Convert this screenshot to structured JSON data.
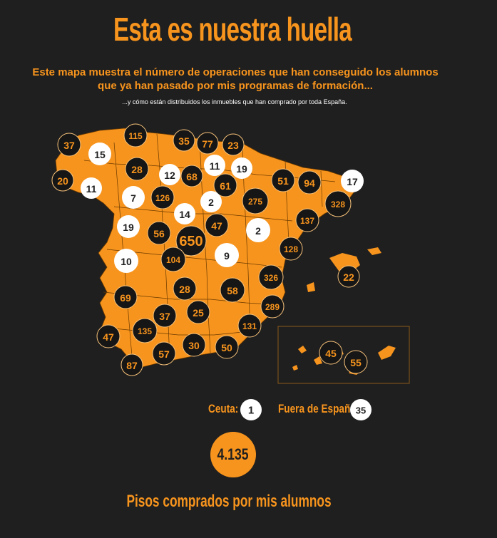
{
  "header": {
    "title": "Esta es nuestra huella",
    "subtitle_line1": "Este mapa muestra el número de operaciones que han conseguido los alumnos",
    "subtitle_line2": "que ya han pasado por mis programas de formación...",
    "note": "...y cómo están distribuidos los inmuebles que han comprado por toda España."
  },
  "colors": {
    "background": "#1f1f1f",
    "accent": "#f7941d",
    "dark": "#161616",
    "white": "#ffffff"
  },
  "markers": [
    {
      "v": "37",
      "s": "dark"
    },
    {
      "v": "115",
      "s": "dark"
    },
    {
      "v": "35",
      "s": "dark"
    },
    {
      "v": "77",
      "s": "dark"
    },
    {
      "v": "23",
      "s": "dark"
    },
    {
      "v": "15",
      "s": "white"
    },
    {
      "v": "28",
      "s": "dark"
    },
    {
      "v": "12",
      "s": "white"
    },
    {
      "v": "68",
      "s": "dark"
    },
    {
      "v": "11",
      "s": "white"
    },
    {
      "v": "19",
      "s": "white"
    },
    {
      "v": "20",
      "s": "dark"
    },
    {
      "v": "11",
      "s": "white"
    },
    {
      "v": "61",
      "s": "dark"
    },
    {
      "v": "51",
      "s": "dark"
    },
    {
      "v": "94",
      "s": "dark"
    },
    {
      "v": "17",
      "s": "white"
    },
    {
      "v": "7",
      "s": "white"
    },
    {
      "v": "126",
      "s": "dark"
    },
    {
      "v": "2",
      "s": "white"
    },
    {
      "v": "275",
      "s": "dark"
    },
    {
      "v": "328",
      "s": "dark"
    },
    {
      "v": "14",
      "s": "white"
    },
    {
      "v": "137",
      "s": "dark"
    },
    {
      "v": "19",
      "s": "white"
    },
    {
      "v": "56",
      "s": "dark"
    },
    {
      "v": "650",
      "s": "dark"
    },
    {
      "v": "47",
      "s": "dark"
    },
    {
      "v": "2",
      "s": "white"
    },
    {
      "v": "128",
      "s": "dark"
    },
    {
      "v": "10",
      "s": "white"
    },
    {
      "v": "104",
      "s": "dark"
    },
    {
      "v": "9",
      "s": "white"
    },
    {
      "v": "22",
      "s": "dark"
    },
    {
      "v": "326",
      "s": "dark"
    },
    {
      "v": "69",
      "s": "dark"
    },
    {
      "v": "28",
      "s": "dark"
    },
    {
      "v": "58",
      "s": "dark"
    },
    {
      "v": "289",
      "s": "dark"
    },
    {
      "v": "37",
      "s": "dark"
    },
    {
      "v": "25",
      "s": "dark"
    },
    {
      "v": "131",
      "s": "dark"
    },
    {
      "v": "47",
      "s": "dark"
    },
    {
      "v": "135",
      "s": "dark"
    },
    {
      "v": "30",
      "s": "dark"
    },
    {
      "v": "50",
      "s": "dark"
    },
    {
      "v": "57",
      "s": "dark"
    },
    {
      "v": "87",
      "s": "dark"
    },
    {
      "v": "45",
      "s": "dark"
    },
    {
      "v": "55",
      "s": "dark"
    }
  ],
  "extras": {
    "ceuta_label": "Ceuta:",
    "ceuta_value": "1",
    "abroad_label": "Fuera de España:",
    "abroad_value": "35"
  },
  "total": {
    "value": "4.135",
    "label": "Pisos comprados por mis alumnos"
  }
}
